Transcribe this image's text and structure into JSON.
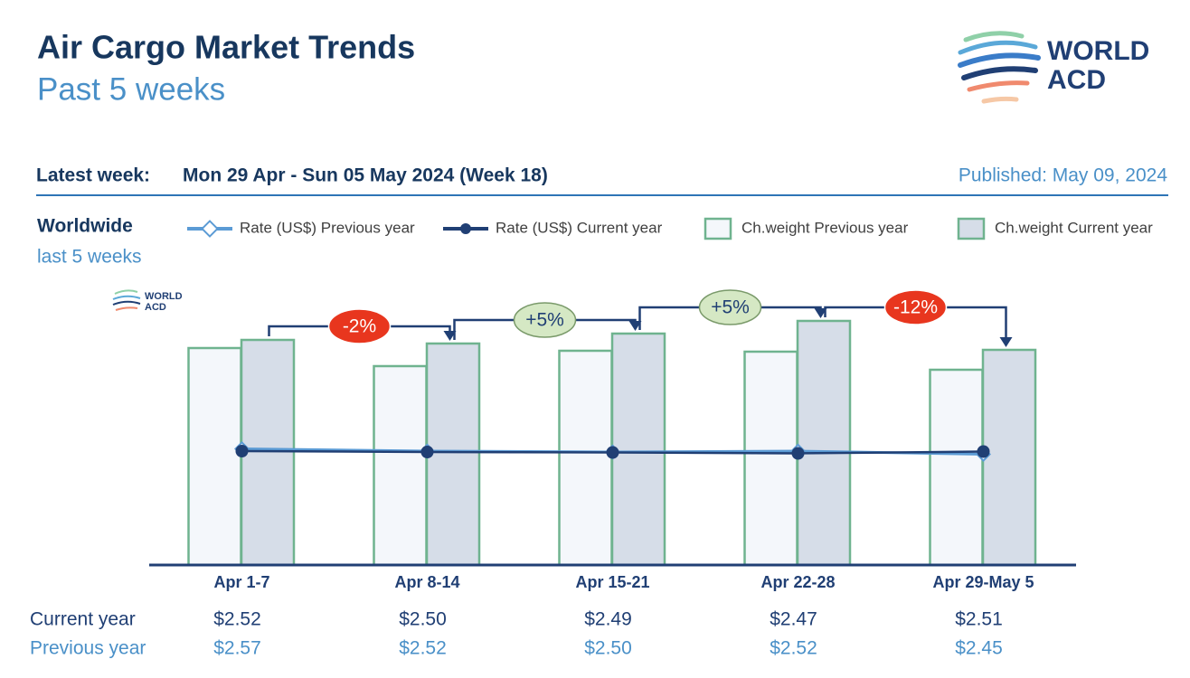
{
  "header": {
    "title": "Air Cargo Market Trends",
    "subtitle": "Past 5 weeks",
    "latest_week_label": "Latest week:",
    "latest_week": "Mon 29 Apr - Sun 05 May 2024 (Week 18)",
    "published": "Published: May 09, 2024",
    "logo": [
      "WORLD",
      "ACD"
    ]
  },
  "chart_data": {
    "type": "bar",
    "region": "Worldwide",
    "period": "last 5 weeks",
    "categories": [
      "Apr 1-7",
      "Apr 8-14",
      "Apr 15-21",
      "Apr 22-28",
      "Apr 29-May 5"
    ],
    "ylim": [
      0,
      300
    ],
    "y2lim": [
      0,
      6
    ],
    "series": [
      {
        "name": "Rate (US$) Previous year",
        "type": "line",
        "axis": "y2",
        "color": "#5b9bd5",
        "values": [
          2.57,
          2.52,
          2.5,
          2.52,
          2.45
        ],
        "value_labels": [
          "$2.57",
          "$2.52",
          "$2.50",
          "$2.52",
          "$2.45"
        ]
      },
      {
        "name": "Rate (US$) Current year",
        "type": "line",
        "axis": "y2",
        "color": "#203f74",
        "values": [
          2.52,
          2.5,
          2.49,
          2.47,
          2.51
        ],
        "value_labels": [
          "$2.52",
          "$2.50",
          "$2.49",
          "$2.47",
          "$2.51"
        ]
      },
      {
        "name": "Ch.weight Previous year",
        "type": "bar",
        "color": "#f4f7fb",
        "values": [
          240,
          220,
          237,
          236,
          216
        ]
      },
      {
        "name": "Ch.weight Current year",
        "type": "bar",
        "color": "#d6dde8",
        "values": [
          249,
          245,
          256,
          270,
          238
        ]
      }
    ],
    "bar_edge_color": "#6fb38f",
    "annotations": [
      {
        "text": "-2%",
        "color": "#e8361e"
      },
      {
        "text": "+5%",
        "color": "#d5e8c4"
      },
      {
        "text": "+5%",
        "color": "#d5e8c4"
      },
      {
        "text": "-12%",
        "color": "#e8361e"
      }
    ],
    "row_labels": [
      "Current year",
      "Previous year"
    ]
  }
}
